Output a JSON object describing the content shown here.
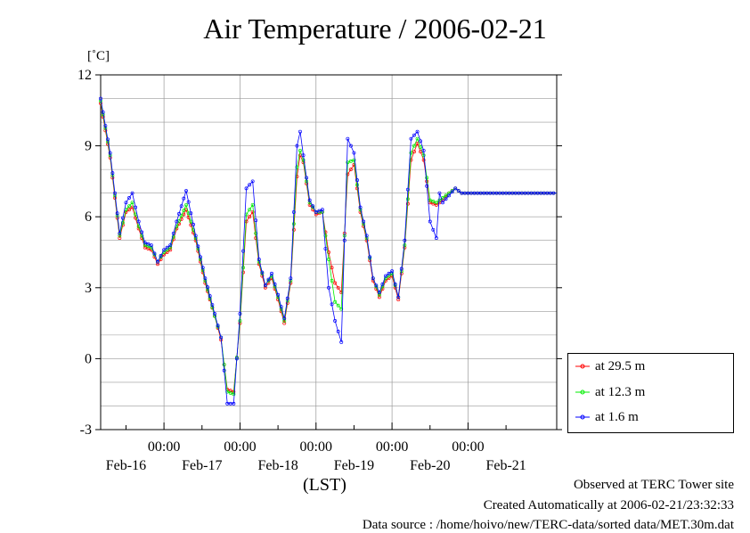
{
  "chart_data": {
    "type": "line",
    "title": "Air Temperature / 2006-02-21",
    "ylabel": "[˚C]",
    "xlabel": "(LST)",
    "ylim": [
      -3,
      12
    ],
    "yticks": [
      12,
      9,
      6,
      3,
      0,
      -3
    ],
    "xlim_hours": [
      0,
      144
    ],
    "xticks_time": [
      "00:00",
      "00:00",
      "00:00",
      "00:00",
      "00:00"
    ],
    "date_labels": [
      "Feb-16",
      "Feb-17",
      "Feb-18",
      "Feb-19",
      "Feb-20",
      "Feb-21"
    ],
    "grid": true,
    "legend_position": "lower-right outside",
    "x_hours": [
      0,
      3,
      6,
      8,
      10,
      12,
      14,
      16,
      18,
      20,
      22,
      24,
      27,
      30,
      33,
      36,
      38,
      40,
      42,
      44,
      46,
      48,
      50,
      52,
      54,
      56,
      58,
      60,
      62,
      63,
      64,
      66,
      68,
      70,
      72,
      74,
      76,
      78,
      80,
      82,
      84,
      86,
      88,
      90,
      92,
      94,
      96,
      98,
      100,
      102,
      104,
      106,
      107,
      108,
      110,
      112,
      114,
      116,
      118,
      120,
      122,
      124,
      126,
      128,
      130,
      132,
      134,
      136,
      138,
      140,
      142,
      144
    ],
    "series": [
      {
        "name": "at 29.5 m",
        "color": "#ff0000",
        "values": [
          10.8,
          8.5,
          5.1,
          6.2,
          6.4,
          5.5,
          4.7,
          4.6,
          4.0,
          4.4,
          4.6,
          5.5,
          6.3,
          5.0,
          3.2,
          1.8,
          0.8,
          -1.3,
          -1.4,
          1.5,
          5.8,
          6.2,
          4.0,
          3.0,
          3.4,
          2.5,
          1.5,
          3.2,
          7.7,
          8.6,
          8.3,
          6.5,
          6.1,
          6.2,
          4.5,
          3.2,
          2.8,
          7.8,
          8.2,
          6.2,
          5.0,
          3.3,
          2.6,
          3.3,
          3.5,
          2.5,
          4.7,
          8.4,
          9.1,
          8.4,
          6.6,
          6.5,
          6.6,
          6.7,
          7.0,
          7.2,
          7.0,
          7.0,
          7.0,
          7.0,
          7.0,
          7.0,
          7.0,
          7.0,
          7.0,
          7.0,
          7.0,
          7.0,
          7.0,
          7.0,
          7.0,
          7.0
        ]
      },
      {
        "name": "at 12.3 m",
        "color": "#00ee00",
        "values": [
          10.9,
          8.6,
          5.2,
          6.3,
          6.6,
          5.6,
          4.8,
          4.7,
          4.1,
          4.5,
          4.7,
          5.6,
          6.5,
          5.1,
          3.3,
          1.8,
          0.9,
          -1.4,
          -1.5,
          1.6,
          6.1,
          6.5,
          4.1,
          3.1,
          3.5,
          2.6,
          1.6,
          3.3,
          8.1,
          8.8,
          8.4,
          6.6,
          6.2,
          6.2,
          4.2,
          2.4,
          2.1,
          8.3,
          8.4,
          6.3,
          5.1,
          3.4,
          2.7,
          3.4,
          3.6,
          2.6,
          4.8,
          8.7,
          9.3,
          8.6,
          6.7,
          6.6,
          6.7,
          6.8,
          7.0,
          7.2,
          7.0,
          7.0,
          7.0,
          7.0,
          7.0,
          7.0,
          7.0,
          7.0,
          7.0,
          7.0,
          7.0,
          7.0,
          7.0,
          7.0,
          7.0,
          7.0
        ]
      },
      {
        "name": "at 1.6 m",
        "color": "#0000ff",
        "values": [
          11.0,
          8.7,
          5.3,
          6.6,
          7.0,
          5.8,
          4.9,
          4.8,
          4.1,
          4.6,
          4.8,
          5.8,
          7.1,
          5.2,
          3.4,
          1.9,
          0.9,
          -1.9,
          -1.9,
          1.9,
          7.2,
          7.5,
          4.2,
          3.1,
          3.6,
          2.7,
          1.7,
          3.4,
          9.0,
          9.6,
          8.6,
          6.7,
          6.2,
          6.3,
          3.0,
          1.6,
          0.7,
          9.3,
          8.7,
          6.4,
          5.2,
          3.4,
          2.8,
          3.5,
          3.7,
          2.6,
          5.0,
          9.3,
          9.6,
          8.8,
          5.8,
          5.1,
          7.0,
          6.6,
          6.9,
          7.2,
          7.0,
          7.0,
          7.0,
          7.0,
          7.0,
          7.0,
          7.0,
          7.0,
          7.0,
          7.0,
          7.0,
          7.0,
          7.0,
          7.0,
          7.0,
          7.0
        ]
      }
    ]
  },
  "footer": {
    "observed": "Observed at TERC Tower site",
    "created": "Created Automatically at 2006-02-21/23:32:33",
    "source": "Data source : /home/hoivo/new/TERC-data/sorted  data/MET.30m.dat"
  }
}
